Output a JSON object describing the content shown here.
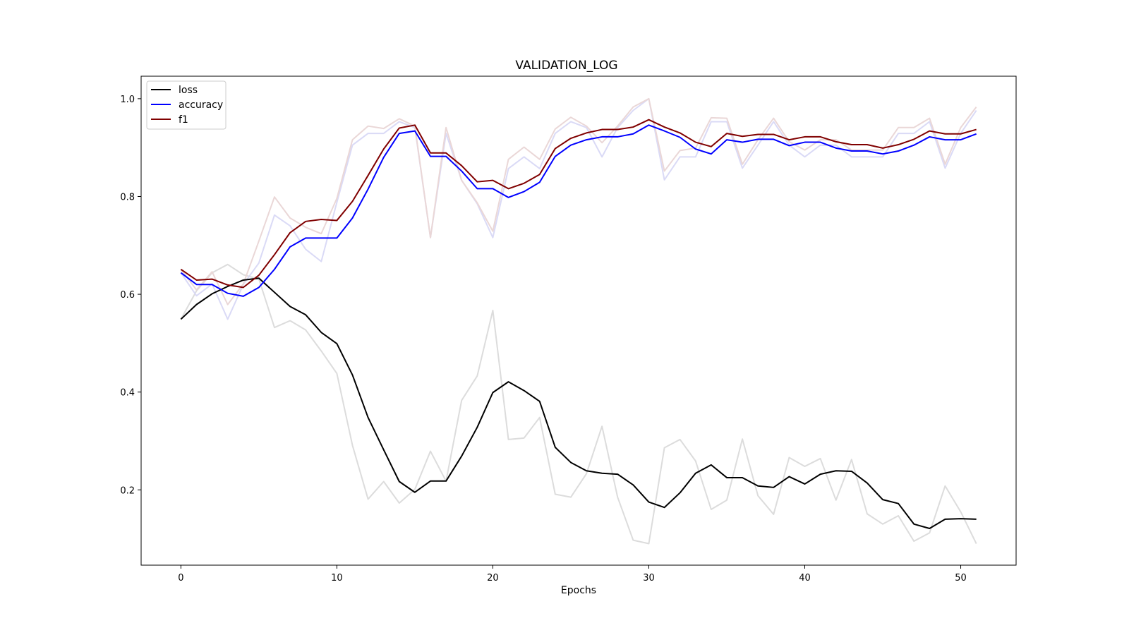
{
  "chart_data": {
    "type": "line",
    "title": "VALIDATION_LOG",
    "xlabel": "Epochs",
    "ylabel": "",
    "xlim": [
      -2.55,
      53.55
    ],
    "ylim": [
      0.046,
      1.046
    ],
    "xticks": [
      0,
      10,
      20,
      30,
      40,
      50
    ],
    "yticks": [
      0.2,
      0.4,
      0.6,
      0.8,
      1.0
    ],
    "xtick_labels": [
      "0",
      "10",
      "20",
      "30",
      "40",
      "50"
    ],
    "ytick_labels": [
      "0.2",
      "0.4",
      "0.6",
      "0.8",
      "1.0"
    ],
    "grid": false,
    "legend": "upper-left",
    "x": [
      0,
      1,
      2,
      3,
      4,
      5,
      6,
      7,
      8,
      9,
      10,
      11,
      12,
      13,
      14,
      15,
      16,
      17,
      18,
      19,
      20,
      21,
      22,
      23,
      24,
      25,
      26,
      27,
      28,
      29,
      30,
      31,
      32,
      33,
      34,
      35,
      36,
      37,
      38,
      39,
      40,
      41,
      42,
      43,
      44,
      45,
      46,
      47,
      48,
      49,
      50,
      51
    ],
    "series": [
      {
        "name": "loss",
        "color": "#000000",
        "values": [
          0.549,
          0.579,
          0.601,
          0.616,
          0.629,
          0.633,
          0.604,
          0.575,
          0.558,
          0.522,
          0.499,
          0.435,
          0.348,
          0.282,
          0.217,
          0.195,
          0.218,
          0.218,
          0.269,
          0.328,
          0.399,
          0.421,
          0.403,
          0.381,
          0.287,
          0.256,
          0.239,
          0.234,
          0.232,
          0.21,
          0.175,
          0.164,
          0.194,
          0.234,
          0.251,
          0.225,
          0.225,
          0.208,
          0.205,
          0.227,
          0.212,
          0.232,
          0.239,
          0.238,
          0.214,
          0.18,
          0.172,
          0.13,
          0.121,
          0.14,
          0.141,
          0.14
        ]
      },
      {
        "name": "accuracy",
        "color": "#0000ff",
        "values": [
          0.644,
          0.62,
          0.62,
          0.602,
          0.596,
          0.614,
          0.651,
          0.697,
          0.715,
          0.715,
          0.715,
          0.756,
          0.815,
          0.88,
          0.929,
          0.934,
          0.882,
          0.882,
          0.852,
          0.816,
          0.816,
          0.798,
          0.81,
          0.829,
          0.882,
          0.905,
          0.916,
          0.922,
          0.922,
          0.928,
          0.946,
          0.934,
          0.921,
          0.897,
          0.887,
          0.916,
          0.911,
          0.917,
          0.917,
          0.904,
          0.911,
          0.911,
          0.899,
          0.893,
          0.893,
          0.887,
          0.893,
          0.905,
          0.922,
          0.916,
          0.916,
          0.928
        ]
      },
      {
        "name": "f1",
        "color": "#800000",
        "values": [
          0.651,
          0.629,
          0.631,
          0.619,
          0.614,
          0.639,
          0.681,
          0.726,
          0.749,
          0.753,
          0.751,
          0.79,
          0.843,
          0.897,
          0.94,
          0.946,
          0.889,
          0.889,
          0.863,
          0.83,
          0.833,
          0.816,
          0.827,
          0.845,
          0.898,
          0.919,
          0.93,
          0.937,
          0.937,
          0.942,
          0.957,
          0.942,
          0.93,
          0.911,
          0.902,
          0.929,
          0.923,
          0.927,
          0.927,
          0.916,
          0.922,
          0.922,
          0.912,
          0.906,
          0.906,
          0.899,
          0.906,
          0.917,
          0.934,
          0.928,
          0.928,
          0.937
        ]
      }
    ],
    "raw_series": [
      {
        "color": "#dcdcdc",
        "values": [
          0.549,
          0.607,
          0.644,
          0.661,
          0.64,
          0.631,
          0.532,
          0.546,
          0.527,
          0.484,
          0.438,
          0.291,
          0.181,
          0.217,
          0.173,
          0.201,
          0.279,
          0.218,
          0.383,
          0.433,
          0.567,
          0.303,
          0.306,
          0.348,
          0.191,
          0.185,
          0.233,
          0.33,
          0.185,
          0.097,
          0.09,
          0.286,
          0.303,
          0.259,
          0.16,
          0.179,
          0.304,
          0.188,
          0.15,
          0.266,
          0.248,
          0.264,
          0.179,
          0.262,
          0.151,
          0.13,
          0.147,
          0.095,
          0.112,
          0.208,
          0.155,
          0.09
        ]
      },
      {
        "color": "#dadaf6",
        "values": [
          0.644,
          0.597,
          0.621,
          0.549,
          0.62,
          0.664,
          0.762,
          0.74,
          0.692,
          0.667,
          0.788,
          0.905,
          0.929,
          0.929,
          0.953,
          0.941,
          0.716,
          0.929,
          0.833,
          0.785,
          0.716,
          0.857,
          0.881,
          0.857,
          0.929,
          0.953,
          0.941,
          0.881,
          0.941,
          0.976,
          1.0,
          0.834,
          0.881,
          0.881,
          0.953,
          0.953,
          0.858,
          0.905,
          0.953,
          0.905,
          0.881,
          0.905,
          0.905,
          0.881,
          0.881,
          0.881,
          0.929,
          0.929,
          0.953,
          0.858,
          0.929,
          0.976
        ]
      },
      {
        "color": "#ead7d7",
        "values": [
          0.651,
          0.609,
          0.646,
          0.579,
          0.621,
          0.709,
          0.799,
          0.756,
          0.737,
          0.724,
          0.796,
          0.916,
          0.944,
          0.939,
          0.959,
          0.944,
          0.716,
          0.941,
          0.833,
          0.787,
          0.729,
          0.876,
          0.901,
          0.876,
          0.938,
          0.962,
          0.944,
          0.91,
          0.944,
          0.983,
          1.0,
          0.852,
          0.894,
          0.899,
          0.961,
          0.96,
          0.866,
          0.916,
          0.96,
          0.912,
          0.895,
          0.916,
          0.916,
          0.895,
          0.895,
          0.895,
          0.941,
          0.941,
          0.96,
          0.866,
          0.941,
          0.983
        ]
      }
    ]
  }
}
